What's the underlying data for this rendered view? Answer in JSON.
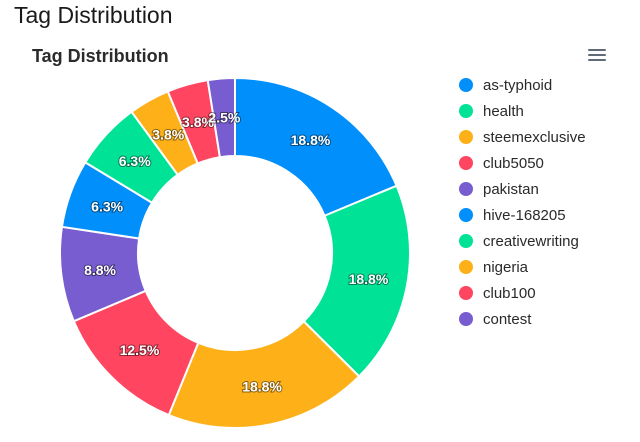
{
  "page": {
    "title": "Tag Distribution"
  },
  "chart_menu": {
    "icon": "hamburger-menu-icon"
  },
  "chart_data": {
    "type": "pie",
    "variant": "donut",
    "title": "Tag Distribution",
    "unit": "%",
    "categories": [
      "as-typhoid",
      "health",
      "steemexclusive",
      "club5050",
      "pakistan",
      "hive-168205",
      "creativewriting",
      "nigeria",
      "club100",
      "contest"
    ],
    "values": [
      18.8,
      18.8,
      18.8,
      12.5,
      8.8,
      6.3,
      6.3,
      3.8,
      3.8,
      2.5
    ],
    "labels": [
      "18.8%",
      "18.8%",
      "18.8%",
      "12.5%",
      "8.8%",
      "6.3%",
      "6.3%",
      "3.8%",
      "3.8%",
      "2.5%"
    ],
    "colors": [
      "#008ffb",
      "#00e396",
      "#feb019",
      "#ff4560",
      "#775dd0",
      "#008ffb",
      "#00e396",
      "#feb019",
      "#ff4560",
      "#775dd0"
    ],
    "legend_position": "right",
    "start": "top, clockwise"
  }
}
